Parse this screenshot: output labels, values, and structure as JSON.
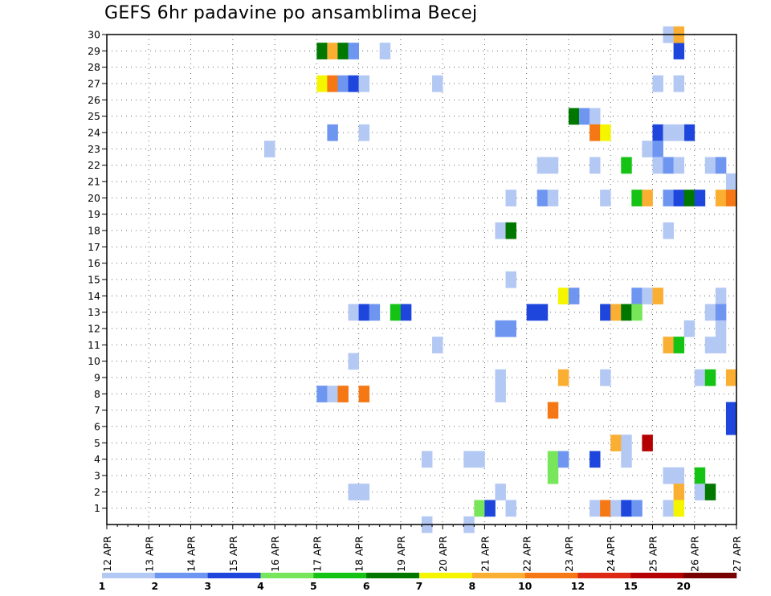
{
  "title": "GEFS 6hr padavine po ansamblima Becej",
  "chart_data": {
    "type": "heatmap",
    "title": "GEFS 6hr padavine po ansamblima Becej",
    "ylabel": "",
    "xlabel": "",
    "y_ticks": [
      1,
      2,
      3,
      4,
      5,
      6,
      7,
      8,
      9,
      10,
      11,
      12,
      13,
      14,
      15,
      16,
      17,
      18,
      19,
      20,
      21,
      22,
      23,
      24,
      25,
      26,
      27,
      28,
      29,
      30
    ],
    "x_ticks": [
      "12 APR",
      "13 APR",
      "14 APR",
      "15 APR",
      "16 APR",
      "17 APR",
      "18 APR",
      "19 APR",
      "20 APR",
      "21 APR",
      "22 APR",
      "23 APR",
      "24 APR",
      "25 APR",
      "26 APR",
      "27 APR"
    ],
    "xlim": [
      "12 APR 00z",
      "27 APR 00z"
    ],
    "ylim": [
      0,
      30
    ],
    "grid": true,
    "legend": {
      "position": "bottom",
      "thresholds": [
        "1",
        "2",
        "3",
        "4",
        "5",
        "6",
        "7",
        "8",
        "10",
        "12",
        "15",
        "20"
      ],
      "colors": [
        "#b4c8f4",
        "#6e96f0",
        "#1e46dc",
        "#78e65a",
        "#14c314",
        "#007800",
        "#f5f500",
        "#faaf32",
        "#f57814",
        "#dc2814",
        "#b40000",
        "#780000"
      ]
    },
    "note": "cells: [day index from 12 APR, six-hour slot 0-3, member, color class 1-12]",
    "cells": [
      [
        5,
        0,
        29,
        6
      ],
      [
        5,
        1,
        29,
        8
      ],
      [
        5,
        2,
        29,
        6
      ],
      [
        5,
        3,
        29,
        2
      ],
      [
        6,
        2,
        29,
        1
      ],
      [
        13,
        2,
        29,
        3
      ],
      [
        13,
        1,
        30,
        1
      ],
      [
        13,
        2,
        30,
        8
      ],
      [
        5,
        0,
        27,
        7
      ],
      [
        5,
        1,
        27,
        9
      ],
      [
        5,
        2,
        27,
        2
      ],
      [
        5,
        3,
        27,
        3
      ],
      [
        6,
        0,
        27,
        1
      ],
      [
        7,
        3,
        27,
        1
      ],
      [
        13,
        0,
        27,
        1
      ],
      [
        13,
        2,
        27,
        1
      ],
      [
        11,
        0,
        25,
        6
      ],
      [
        11,
        1,
        25,
        2
      ],
      [
        11,
        2,
        25,
        1
      ],
      [
        5,
        1,
        24,
        2
      ],
      [
        6,
        0,
        24,
        1
      ],
      [
        11,
        2,
        24,
        9
      ],
      [
        11,
        3,
        24,
        7
      ],
      [
        13,
        3,
        24,
        3
      ],
      [
        13,
        0,
        24,
        3
      ],
      [
        13,
        1,
        24,
        1
      ],
      [
        13,
        2,
        24,
        1
      ],
      [
        3,
        3,
        23,
        1
      ],
      [
        12,
        3,
        23,
        1
      ],
      [
        13,
        0,
        23,
        2
      ],
      [
        10,
        1,
        22,
        1
      ],
      [
        10,
        2,
        22,
        1
      ],
      [
        11,
        2,
        22,
        1
      ],
      [
        12,
        1,
        22,
        5
      ],
      [
        13,
        0,
        22,
        1
      ],
      [
        13,
        1,
        22,
        2
      ],
      [
        13,
        2,
        22,
        1
      ],
      [
        14,
        1,
        22,
        1
      ],
      [
        14,
        2,
        22,
        2
      ],
      [
        14,
        3,
        21,
        1
      ],
      [
        9,
        2,
        20,
        1
      ],
      [
        10,
        1,
        20,
        2
      ],
      [
        10,
        2,
        20,
        1
      ],
      [
        11,
        3,
        20,
        1
      ],
      [
        12,
        2,
        20,
        5
      ],
      [
        12,
        3,
        20,
        8
      ],
      [
        13,
        1,
        20,
        2
      ],
      [
        13,
        2,
        20,
        3
      ],
      [
        13,
        3,
        20,
        6
      ],
      [
        14,
        0,
        20,
        3
      ],
      [
        14,
        2,
        20,
        8
      ],
      [
        14,
        3,
        20,
        9
      ],
      [
        9,
        1,
        18,
        1
      ],
      [
        9,
        2,
        18,
        6
      ],
      [
        13,
        1,
        18,
        1
      ],
      [
        9,
        2,
        15,
        1
      ],
      [
        10,
        3,
        14,
        7
      ],
      [
        11,
        0,
        14,
        2
      ],
      [
        12,
        2,
        14,
        2
      ],
      [
        12,
        3,
        14,
        1
      ],
      [
        13,
        0,
        14,
        8
      ],
      [
        14,
        2,
        14,
        1
      ],
      [
        5,
        3,
        13,
        1
      ],
      [
        6,
        0,
        13,
        3
      ],
      [
        6,
        1,
        13,
        2
      ],
      [
        6,
        3,
        13,
        5
      ],
      [
        7,
        0,
        13,
        3
      ],
      [
        10,
        0,
        13,
        3
      ],
      [
        10,
        1,
        13,
        3
      ],
      [
        11,
        3,
        13,
        3
      ],
      [
        12,
        0,
        13,
        8
      ],
      [
        12,
        1,
        13,
        6
      ],
      [
        12,
        2,
        13,
        4
      ],
      [
        14,
        1,
        13,
        1
      ],
      [
        14,
        2,
        13,
        2
      ],
      [
        9,
        1,
        12,
        2
      ],
      [
        9,
        2,
        12,
        2
      ],
      [
        13,
        3,
        12,
        1
      ],
      [
        14,
        2,
        12,
        1
      ],
      [
        7,
        3,
        11,
        1
      ],
      [
        13,
        1,
        11,
        8
      ],
      [
        13,
        2,
        11,
        5
      ],
      [
        14,
        1,
        11,
        1
      ],
      [
        14,
        2,
        11,
        1
      ],
      [
        5,
        3,
        10,
        1
      ],
      [
        9,
        1,
        9,
        1
      ],
      [
        10,
        3,
        9,
        8
      ],
      [
        11,
        3,
        9,
        1
      ],
      [
        14,
        0,
        9,
        1
      ],
      [
        14,
        1,
        9,
        5
      ],
      [
        14,
        3,
        9,
        8
      ],
      [
        5,
        0,
        8,
        2
      ],
      [
        5,
        1,
        8,
        1
      ],
      [
        5,
        2,
        8,
        9
      ],
      [
        6,
        0,
        8,
        9
      ],
      [
        9,
        1,
        8,
        1
      ],
      [
        10,
        2,
        7,
        9
      ],
      [
        14,
        3,
        7,
        3
      ],
      [
        14,
        3,
        6,
        3
      ],
      [
        12,
        3,
        5,
        11
      ],
      [
        12,
        0,
        5,
        8
      ],
      [
        12,
        1,
        5,
        1
      ],
      [
        7,
        2,
        4,
        1
      ],
      [
        8,
        2,
        4,
        1
      ],
      [
        8,
        3,
        4,
        1
      ],
      [
        10,
        2,
        4,
        4
      ],
      [
        10,
        3,
        4,
        2
      ],
      [
        11,
        2,
        4,
        3
      ],
      [
        12,
        1,
        4,
        1
      ],
      [
        10,
        2,
        3,
        4
      ],
      [
        13,
        1,
        3,
        1
      ],
      [
        13,
        2,
        3,
        1
      ],
      [
        14,
        0,
        3,
        5
      ],
      [
        5,
        3,
        2,
        1
      ],
      [
        6,
        0,
        2,
        1
      ],
      [
        9,
        1,
        2,
        1
      ],
      [
        13,
        2,
        2,
        8
      ],
      [
        14,
        0,
        2,
        1
      ],
      [
        14,
        1,
        2,
        6
      ],
      [
        8,
        3,
        1,
        4
      ],
      [
        9,
        0,
        1,
        3
      ],
      [
        9,
        2,
        1,
        1
      ],
      [
        11,
        2,
        1,
        1
      ],
      [
        11,
        3,
        1,
        9
      ],
      [
        12,
        0,
        1,
        1
      ],
      [
        12,
        1,
        1,
        3
      ],
      [
        12,
        2,
        1,
        2
      ],
      [
        13,
        1,
        1,
        1
      ],
      [
        13,
        2,
        1,
        7
      ],
      [
        7,
        2,
        0,
        1
      ],
      [
        8,
        2,
        0,
        1
      ]
    ]
  }
}
